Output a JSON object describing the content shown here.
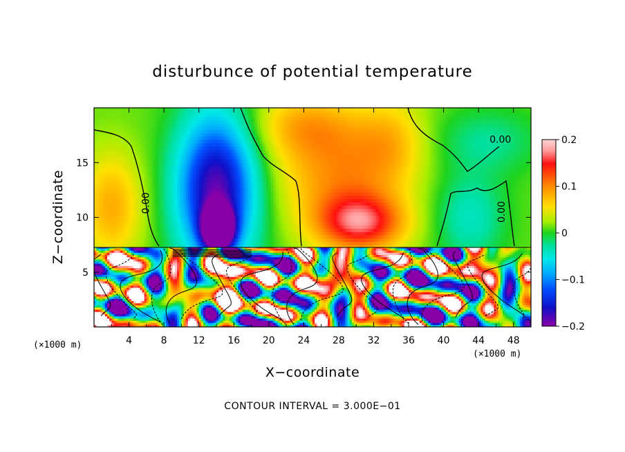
{
  "chart_data": {
    "type": "heatmap",
    "title": "disturbunce of potential temperature",
    "xlabel": "X−coordinate",
    "ylabel": "Z−coordinate",
    "x_unit_left": "(×1000 m)",
    "x_unit_right": "(×1000 m)",
    "xlim": [
      0,
      50
    ],
    "ylim": [
      0,
      20
    ],
    "x_ticks": [
      4,
      8,
      12,
      16,
      20,
      24,
      28,
      32,
      36,
      40,
      44,
      48
    ],
    "x_tick_labels": [
      "4",
      "8",
      "12",
      "16",
      "20",
      "24",
      "28",
      "32",
      "36",
      "40",
      "44",
      "48"
    ],
    "y_ticks": [
      5,
      10,
      15
    ],
    "y_tick_labels": [
      "5",
      "10",
      "15"
    ],
    "colorbar": {
      "range": [
        -0.2,
        0.2
      ],
      "tick_values": [
        0.2,
        0.1,
        0,
        -0.1,
        -0.2
      ],
      "tick_labels": [
        "0.2",
        "0.1",
        "0",
        "−0.1",
        "−0.2"
      ]
    },
    "contour_labels": [
      {
        "text": "0.00",
        "x": 46.5,
        "z": 16.8
      },
      {
        "text": "0.00",
        "x": 6.3,
        "z": 11.3
      },
      {
        "text": "0.00",
        "x": 47.0,
        "z": 10.5
      }
    ],
    "contour_interval_text": "CONTOUR INTERVAL = 3.000E−01",
    "grid": false
  },
  "colors": {
    "frame": "#000000",
    "contour": "#000000"
  }
}
